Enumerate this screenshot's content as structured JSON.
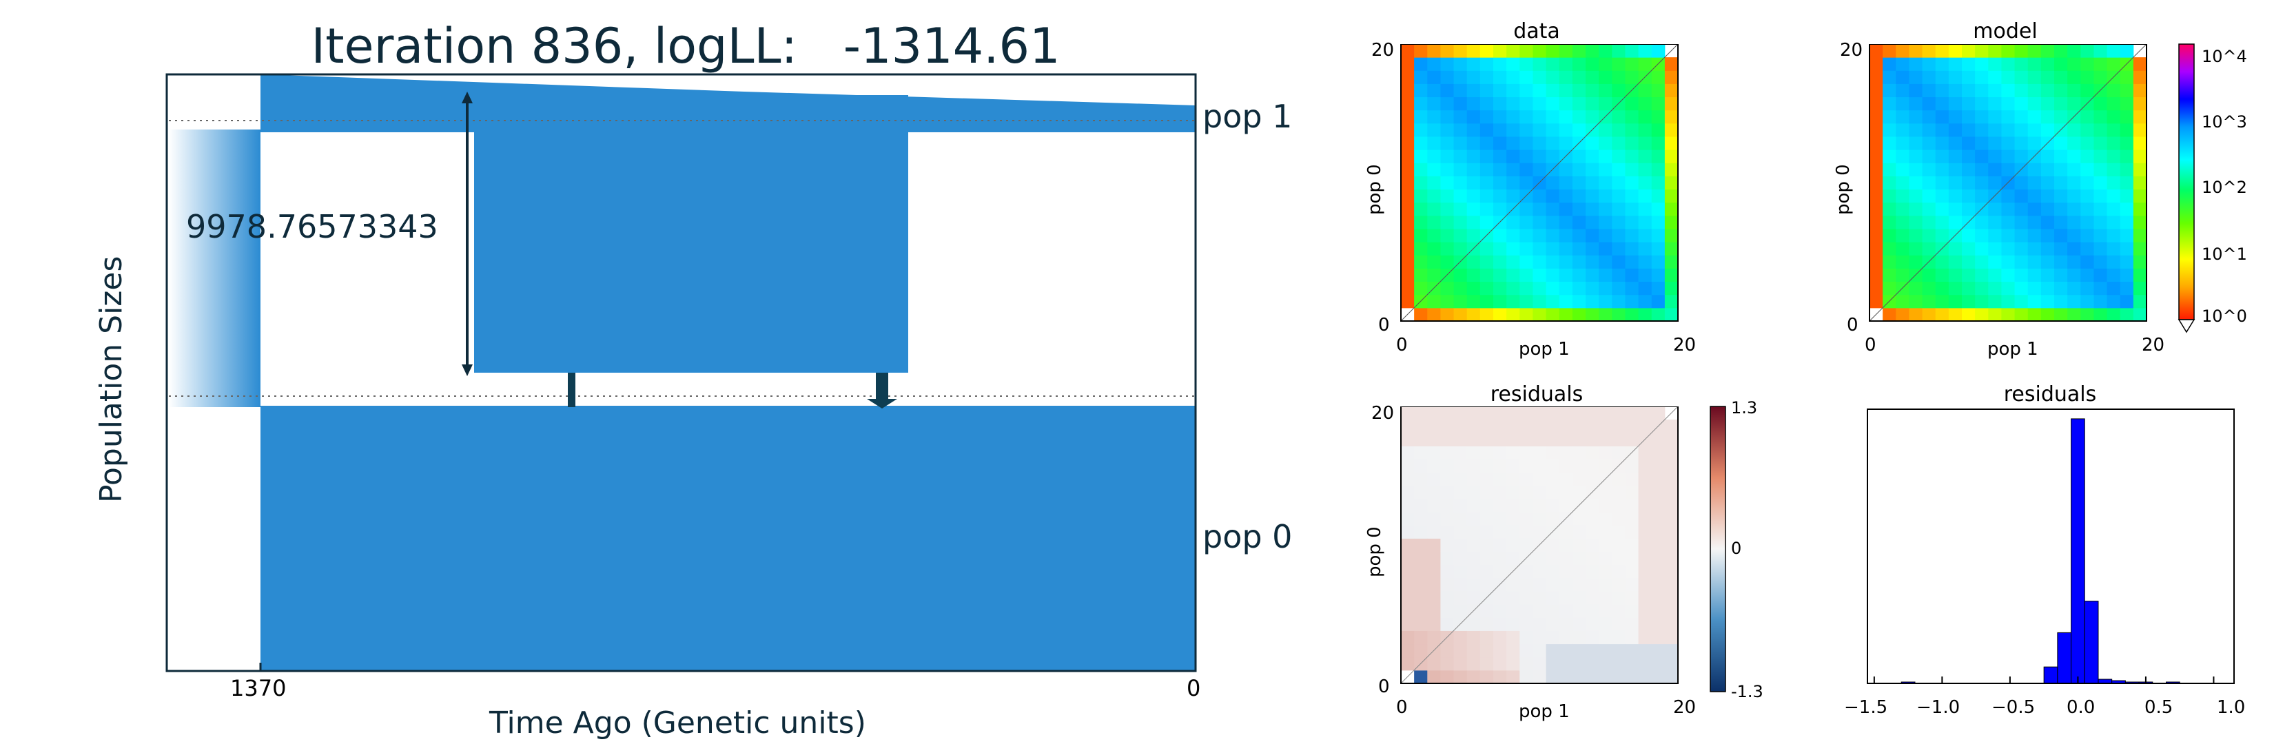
{
  "chart_data": [
    {
      "type": "diagram",
      "title": "Iteration 836, logLL:   -1314.61",
      "xlabel": "Time Ago (Genetic units)",
      "ylabel": "Population Sizes",
      "x_ticks": [
        "1370",
        "0"
      ],
      "populations": [
        "pop 1",
        "pop 0"
      ],
      "annotation": "9978.76573343"
    },
    {
      "type": "heatmap",
      "title": "data",
      "xlabel": "pop 1",
      "ylabel": "pop 0",
      "x_ticks": [
        "0",
        "20"
      ],
      "y_ticks": [
        "0",
        "20"
      ]
    },
    {
      "type": "heatmap",
      "title": "model",
      "xlabel": "pop 1",
      "ylabel": "pop 0",
      "x_ticks": [
        "0",
        "20"
      ],
      "y_ticks": [
        "0",
        "20"
      ],
      "colorbar_ticks": [
        "10^0",
        "10^1",
        "10^2",
        "10^3",
        "10^4"
      ]
    },
    {
      "type": "heatmap",
      "title": "residuals",
      "xlabel": "pop 1",
      "ylabel": "pop 0",
      "x_ticks": [
        "0",
        "20"
      ],
      "y_ticks": [
        "0",
        "20"
      ],
      "colorbar_ticks": [
        "1.3",
        "0",
        "-1.3"
      ]
    },
    {
      "type": "bar",
      "title": "residuals",
      "x_ticks": [
        "−1.5",
        "−1.0",
        "−0.5",
        "0.0",
        "0.5",
        "1.0"
      ],
      "xlim": [
        -1.5,
        1.0
      ],
      "bins": [
        {
          "x0": -1.3,
          "x1": -1.2,
          "count": 1
        },
        {
          "x0": -0.25,
          "x1": -0.15,
          "count": 12
        },
        {
          "x0": -0.15,
          "x1": -0.05,
          "count": 37
        },
        {
          "x0": -0.05,
          "x1": 0.05,
          "count": 193
        },
        {
          "x0": 0.05,
          "x1": 0.15,
          "count": 60
        },
        {
          "x0": 0.15,
          "x1": 0.25,
          "count": 3
        },
        {
          "x0": 0.25,
          "x1": 0.35,
          "count": 2
        },
        {
          "x0": 0.35,
          "x1": 0.45,
          "count": 1
        },
        {
          "x0": 0.45,
          "x1": 0.55,
          "count": 1
        },
        {
          "x0": 0.65,
          "x1": 0.75,
          "count": 1
        }
      ],
      "ylim": [
        0,
        200
      ]
    }
  ],
  "colors": {
    "pop_fill": "#2b8bd2",
    "dark": "#0e3d52"
  }
}
